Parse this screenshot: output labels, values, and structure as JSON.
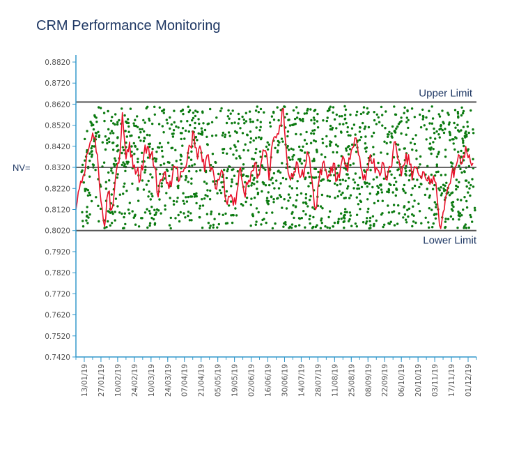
{
  "chart_data": {
    "type": "line",
    "title": "CRM Performance Monitoring",
    "xlabel": "",
    "ylabel": "",
    "ylim": [
      0.742,
      0.882
    ],
    "yticks": [
      "0.8820",
      "0.8720",
      "0.8620",
      "0.8520",
      "0.8420",
      "0.8320",
      "0.8220",
      "0.8120",
      "0.8020",
      "0.7920",
      "0.7820",
      "0.7720",
      "0.7620",
      "0.7520",
      "0.7420"
    ],
    "nv_label": "NV=",
    "nominal_value": 0.832,
    "upper_limit": {
      "label": "Upper Limit",
      "value": 0.863
    },
    "lower_limit": {
      "label": "Lower Limit",
      "value": 0.802
    },
    "x_range": [
      "2019-01-06",
      "2019-12-08"
    ],
    "x_ticks": [
      {
        "date": "2019-01-13",
        "label": "13/01/19"
      },
      {
        "date": "2019-01-27",
        "label": "27/01/19"
      },
      {
        "date": "2019-02-10",
        "label": "10/02/19"
      },
      {
        "date": "2019-02-24",
        "label": "24/02/19"
      },
      {
        "date": "2019-03-10",
        "label": "10/03/19"
      },
      {
        "date": "2019-03-24",
        "label": "24/03/19"
      },
      {
        "date": "2019-04-07",
        "label": "07/04/19"
      },
      {
        "date": "2019-04-21",
        "label": "21/04/19"
      },
      {
        "date": "2019-05-05",
        "label": "05/05/19"
      },
      {
        "date": "2019-05-19",
        "label": "19/05/19"
      },
      {
        "date": "2019-06-02",
        "label": "02/06/19"
      },
      {
        "date": "2019-06-16",
        "label": "16/06/19"
      },
      {
        "date": "2019-06-30",
        "label": "30/06/19"
      },
      {
        "date": "2019-07-14",
        "label": "14/07/19"
      },
      {
        "date": "2019-07-28",
        "label": "28/07/19"
      },
      {
        "date": "2019-08-11",
        "label": "11/08/19"
      },
      {
        "date": "2019-08-25",
        "label": "25/08/19"
      },
      {
        "date": "2019-09-08",
        "label": "08/09/19"
      },
      {
        "date": "2019-09-22",
        "label": "22/09/19"
      },
      {
        "date": "2019-10-06",
        "label": "06/10/19"
      },
      {
        "date": "2019-10-20",
        "label": "20/10/19"
      },
      {
        "date": "2019-11-03",
        "label": "03/11/19"
      },
      {
        "date": "2019-11-17",
        "label": "17/11/19"
      },
      {
        "date": "2019-12-01",
        "label": "01/12/19"
      }
    ],
    "series": [
      {
        "color": "#e8102a",
        "style": "line",
        "points": [
          [
            "2019-01-06",
            0.812
          ],
          [
            "2019-01-09",
            0.822
          ],
          [
            "2019-01-12",
            0.828
          ],
          [
            "2019-01-15",
            0.838
          ],
          [
            "2019-01-18",
            0.844
          ],
          [
            "2019-01-21",
            0.846
          ],
          [
            "2019-01-24",
            0.838
          ],
          [
            "2019-01-27",
            0.816
          ],
          [
            "2019-01-30",
            0.804
          ],
          [
            "2019-02-02",
            0.82
          ],
          [
            "2019-02-05",
            0.812
          ],
          [
            "2019-02-08",
            0.826
          ],
          [
            "2019-02-11",
            0.834
          ],
          [
            "2019-02-14",
            0.858
          ],
          [
            "2019-02-17",
            0.836
          ],
          [
            "2019-02-20",
            0.844
          ],
          [
            "2019-02-23",
            0.832
          ],
          [
            "2019-02-26",
            0.83
          ],
          [
            "2019-03-01",
            0.826
          ],
          [
            "2019-03-04",
            0.838
          ],
          [
            "2019-03-07",
            0.842
          ],
          [
            "2019-03-10",
            0.838
          ],
          [
            "2019-03-13",
            0.832
          ],
          [
            "2019-03-16",
            0.818
          ],
          [
            "2019-03-19",
            0.826
          ],
          [
            "2019-03-22",
            0.83
          ],
          [
            "2019-03-25",
            0.822
          ],
          [
            "2019-03-28",
            0.828
          ],
          [
            "2019-03-31",
            0.832
          ],
          [
            "2019-04-03",
            0.826
          ],
          [
            "2019-04-06",
            0.83
          ],
          [
            "2019-04-09",
            0.834
          ],
          [
            "2019-04-12",
            0.842
          ],
          [
            "2019-04-15",
            0.848
          ],
          [
            "2019-04-18",
            0.836
          ],
          [
            "2019-04-21",
            0.84
          ],
          [
            "2019-04-24",
            0.83
          ],
          [
            "2019-04-27",
            0.838
          ],
          [
            "2019-04-30",
            0.832
          ],
          [
            "2019-05-03",
            0.822
          ],
          [
            "2019-05-06",
            0.826
          ],
          [
            "2019-05-09",
            0.83
          ],
          [
            "2019-05-12",
            0.816
          ],
          [
            "2019-05-15",
            0.818
          ],
          [
            "2019-05-18",
            0.814
          ],
          [
            "2019-05-21",
            0.82
          ],
          [
            "2019-05-24",
            0.832
          ],
          [
            "2019-05-27",
            0.82
          ],
          [
            "2019-05-30",
            0.824
          ],
          [
            "2019-06-02",
            0.83
          ],
          [
            "2019-06-05",
            0.834
          ],
          [
            "2019-06-08",
            0.828
          ],
          [
            "2019-06-11",
            0.836
          ],
          [
            "2019-06-14",
            0.84
          ],
          [
            "2019-06-17",
            0.826
          ],
          [
            "2019-06-20",
            0.844
          ],
          [
            "2019-06-23",
            0.846
          ],
          [
            "2019-06-26",
            0.852
          ],
          [
            "2019-06-29",
            0.86
          ],
          [
            "2019-07-02",
            0.836
          ],
          [
            "2019-07-05",
            0.826
          ],
          [
            "2019-07-08",
            0.83
          ],
          [
            "2019-07-11",
            0.834
          ],
          [
            "2019-07-14",
            0.828
          ],
          [
            "2019-07-17",
            0.832
          ],
          [
            "2019-07-20",
            0.838
          ],
          [
            "2019-07-23",
            0.826
          ],
          [
            "2019-07-26",
            0.812
          ],
          [
            "2019-07-29",
            0.826
          ],
          [
            "2019-08-01",
            0.834
          ],
          [
            "2019-08-04",
            0.83
          ],
          [
            "2019-08-07",
            0.828
          ],
          [
            "2019-08-10",
            0.834
          ],
          [
            "2019-08-13",
            0.826
          ],
          [
            "2019-08-16",
            0.832
          ],
          [
            "2019-08-19",
            0.836
          ],
          [
            "2019-08-22",
            0.83
          ],
          [
            "2019-08-25",
            0.84
          ],
          [
            "2019-08-28",
            0.846
          ],
          [
            "2019-08-31",
            0.838
          ],
          [
            "2019-09-03",
            0.83
          ],
          [
            "2019-09-06",
            0.826
          ],
          [
            "2019-09-09",
            0.836
          ],
          [
            "2019-09-12",
            0.834
          ],
          [
            "2019-09-15",
            0.832
          ],
          [
            "2019-09-18",
            0.828
          ],
          [
            "2019-09-21",
            0.834
          ],
          [
            "2019-09-24",
            0.826
          ],
          [
            "2019-09-27",
            0.832
          ],
          [
            "2019-09-30",
            0.844
          ],
          [
            "2019-10-03",
            0.836
          ],
          [
            "2019-10-06",
            0.828
          ],
          [
            "2019-10-09",
            0.834
          ],
          [
            "2019-10-12",
            0.838
          ],
          [
            "2019-10-15",
            0.826
          ],
          [
            "2019-10-18",
            0.832
          ],
          [
            "2019-10-21",
            0.828
          ],
          [
            "2019-10-24",
            0.83
          ],
          [
            "2019-10-27",
            0.826
          ],
          [
            "2019-10-30",
            0.824
          ],
          [
            "2019-11-02",
            0.828
          ],
          [
            "2019-11-05",
            0.818
          ],
          [
            "2019-11-08",
            0.803
          ],
          [
            "2019-11-11",
            0.812
          ],
          [
            "2019-11-14",
            0.822
          ],
          [
            "2019-11-17",
            0.828
          ],
          [
            "2019-11-20",
            0.832
          ],
          [
            "2019-11-23",
            0.838
          ],
          [
            "2019-11-26",
            0.834
          ],
          [
            "2019-11-29",
            0.842
          ],
          [
            "2019-12-02",
            0.838
          ],
          [
            "2019-12-05",
            0.834
          ]
        ]
      }
    ],
    "scatter_color": "#0b7a10",
    "axis_color": "#3399cc"
  }
}
